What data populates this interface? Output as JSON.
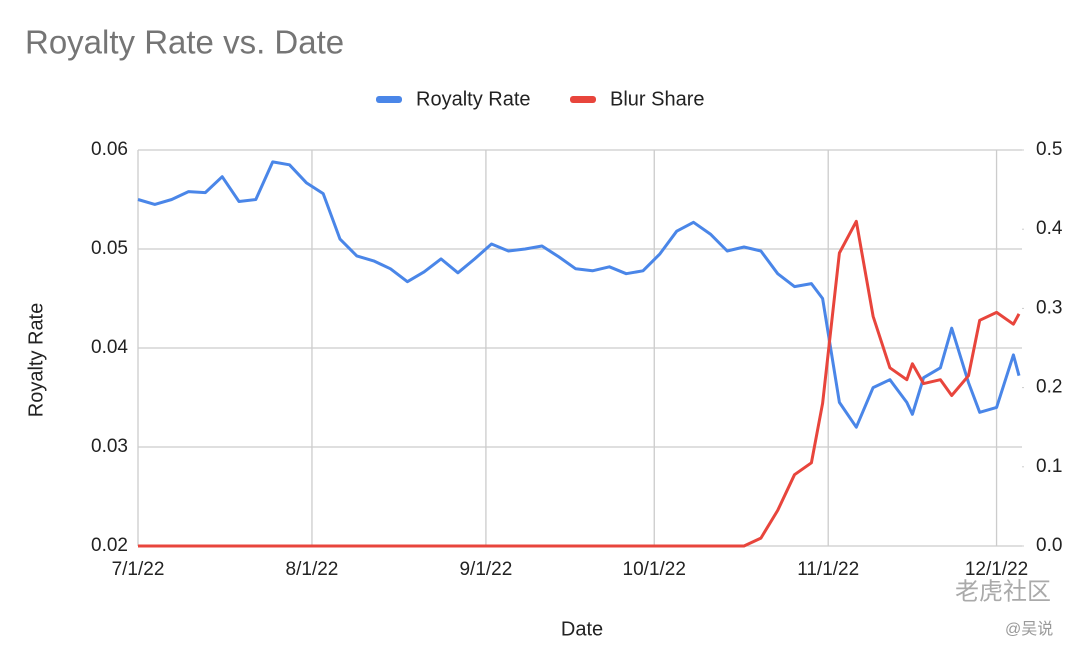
{
  "chart_data": {
    "type": "line",
    "title": "Royalty Rate vs. Date",
    "xlabel": "Date",
    "ylabel": "Royalty Rate",
    "x": [
      "7/1/22",
      "7/4/22",
      "7/7/22",
      "7/10/22",
      "7/13/22",
      "7/16/22",
      "7/19/22",
      "7/22/22",
      "7/25/22",
      "7/28/22",
      "7/31/22",
      "8/3/22",
      "8/6/22",
      "8/9/22",
      "8/12/22",
      "8/15/22",
      "8/18/22",
      "8/21/22",
      "8/24/22",
      "8/27/22",
      "8/30/22",
      "9/2/22",
      "9/5/22",
      "9/8/22",
      "9/11/22",
      "9/14/22",
      "9/17/22",
      "9/20/22",
      "9/23/22",
      "9/26/22",
      "9/29/22",
      "10/2/22",
      "10/5/22",
      "10/8/22",
      "10/11/22",
      "10/14/22",
      "10/17/22",
      "10/20/22",
      "10/23/22",
      "10/26/22",
      "10/29/22",
      "10/31/22",
      "11/3/22",
      "11/6/22",
      "11/9/22",
      "11/12/22",
      "11/15/22",
      "11/16/22",
      "11/18/22",
      "11/21/22",
      "11/23/22",
      "11/26/22",
      "11/28/22",
      "12/1/22",
      "12/4/22",
      "12/5/22"
    ],
    "series": [
      {
        "name": "Royalty Rate",
        "color": "#4a86e8",
        "axis": "y",
        "values": [
          0.055,
          0.0545,
          0.055,
          0.0558,
          0.0557,
          0.0573,
          0.0548,
          0.055,
          0.0588,
          0.0585,
          0.0567,
          0.0556,
          0.051,
          0.0493,
          0.0488,
          0.048,
          0.0467,
          0.0477,
          0.049,
          0.0476,
          0.049,
          0.0505,
          0.0498,
          0.05,
          0.0503,
          0.0492,
          0.048,
          0.0478,
          0.0482,
          0.0475,
          0.0478,
          0.0495,
          0.0518,
          0.0527,
          0.0515,
          0.0498,
          0.0502,
          0.0498,
          0.0475,
          0.0462,
          0.0465,
          0.045,
          0.0345,
          0.032,
          0.036,
          0.0368,
          0.0345,
          0.0333,
          0.037,
          0.038,
          0.042,
          0.0365,
          0.0335,
          0.034,
          0.0393,
          0.0372
        ]
      },
      {
        "name": "Blur Share",
        "color": "#e8453c",
        "axis": "y2",
        "values": [
          0,
          0,
          0,
          0,
          0,
          0,
          0,
          0,
          0,
          0,
          0,
          0,
          0,
          0,
          0,
          0,
          0,
          0,
          0,
          0,
          0,
          0,
          0,
          0,
          0,
          0,
          0,
          0,
          0,
          0,
          0,
          0,
          0,
          0,
          0,
          0,
          0,
          0.01,
          0.045,
          0.09,
          0.105,
          0.18,
          0.37,
          0.41,
          0.29,
          0.225,
          0.21,
          0.23,
          0.205,
          0.21,
          0.19,
          0.215,
          0.285,
          0.295,
          0.28,
          0.293
        ]
      }
    ],
    "xlim": [
      "7/1/22",
      "12/5/22"
    ],
    "xticks": [
      "7/1/22",
      "8/1/22",
      "9/1/22",
      "10/1/22",
      "11/1/22",
      "12/1/22"
    ],
    "ylim": [
      0.02,
      0.06
    ],
    "yticks": [
      0.02,
      0.03,
      0.04,
      0.05,
      0.06
    ],
    "y2lim": [
      0,
      0.5
    ],
    "y2ticks": [
      {
        "value": 0,
        "label": "0.0"
      },
      0.1,
      0.2,
      0.3,
      0.4,
      0.5
    ],
    "grid": true,
    "legend": "top",
    "watermark": [
      "老虎社区",
      "@吴说"
    ]
  }
}
